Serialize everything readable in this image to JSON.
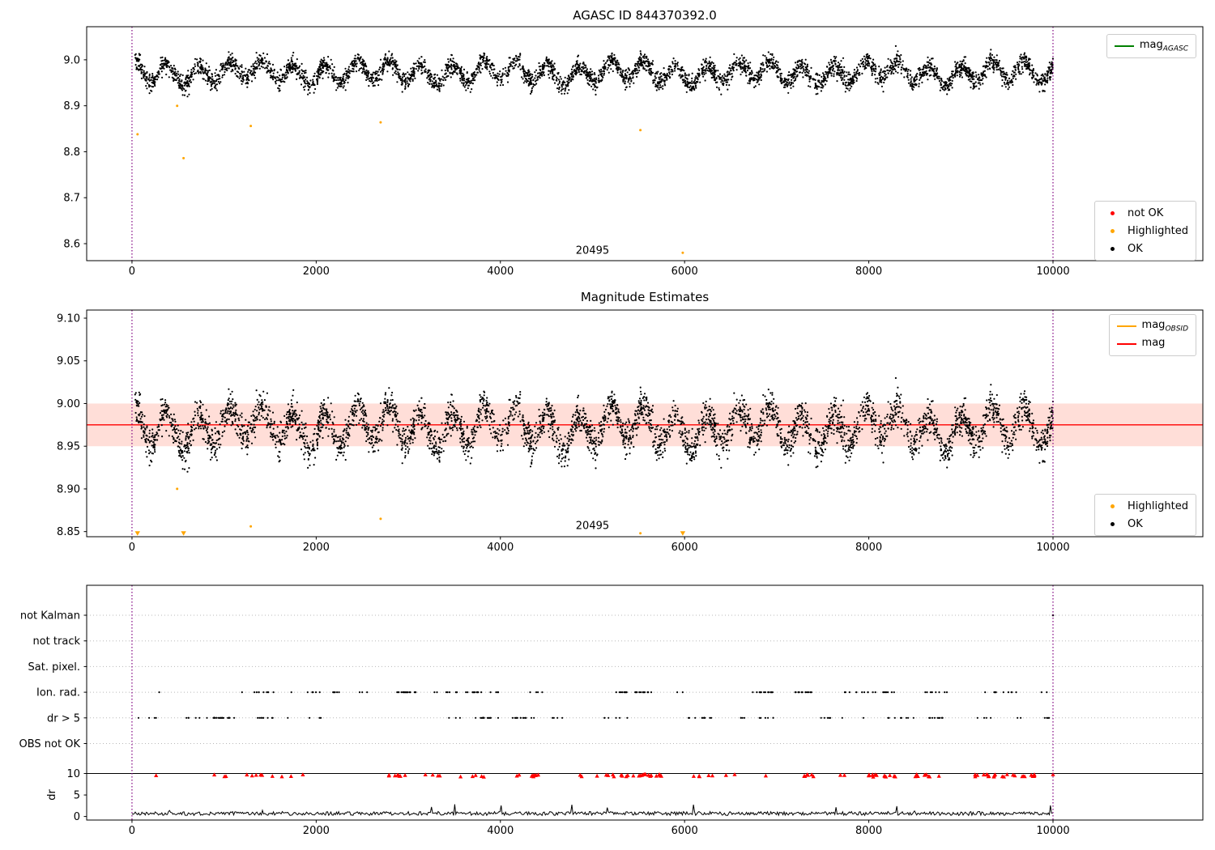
{
  "figure": {
    "background": "#ffffff"
  },
  "chart_data": [
    {
      "id": "plot-agasc",
      "type": "scatter",
      "title": "AGASC ID 844370392.0",
      "xlim": [
        -492,
        11627
      ],
      "ylim": [
        8.563,
        9.072
      ],
      "xticks": [
        0,
        2000,
        4000,
        6000,
        8000,
        10000
      ],
      "xtick_labels": [
        "0",
        "2000",
        "4000",
        "6000",
        "8000",
        "10000"
      ],
      "yticks": [
        8.6,
        8.7,
        8.8,
        8.9,
        9.0
      ],
      "ytick_labels": [
        "8.6",
        "8.7",
        "8.8",
        "8.9",
        "9.0"
      ],
      "vlines": {
        "x": [
          0,
          10000
        ],
        "color": "#800080"
      },
      "annotation": {
        "text": "20495",
        "x": 5000,
        "y": 8.578
      },
      "ok_series": {
        "label": "OK",
        "color": "#000000",
        "n": 4200,
        "x_min": 30,
        "x_max": 10000,
        "mean": 8.972,
        "osc_amplitude": 0.02,
        "osc_period": 345,
        "slow_amplitude": 0.007,
        "slow_period": 1370,
        "noise_sd": 0.01,
        "seed": 42
      },
      "highlighted_points": [
        [
          60,
          8.838
        ],
        [
          490,
          8.9
        ],
        [
          560,
          8.786
        ],
        [
          1290,
          8.856
        ],
        [
          2700,
          8.864
        ],
        [
          5520,
          8.847
        ],
        [
          5980,
          8.58
        ]
      ],
      "not_ok_points": [],
      "legend_line": {
        "label_base": "mag",
        "label_sub": "AGASC",
        "color": "#008000"
      },
      "legend_markers": [
        {
          "label": "not OK",
          "color": "#ff0000"
        },
        {
          "label": "Highlighted",
          "color": "#ffa500"
        },
        {
          "label": "OK",
          "color": "#000000"
        }
      ]
    },
    {
      "id": "plot-magnitude-estimates",
      "type": "scatter",
      "title": "Magnitude Estimates",
      "xlim": [
        -492,
        11627
      ],
      "ylim": [
        8.844,
        9.1095
      ],
      "xticks": [
        0,
        2000,
        4000,
        6000,
        8000,
        10000
      ],
      "xtick_labels": [
        "0",
        "2000",
        "4000",
        "6000",
        "8000",
        "10000"
      ],
      "yticks": [
        8.85,
        8.9,
        8.95,
        9.0,
        9.05,
        9.1
      ],
      "ytick_labels": [
        "8.85",
        "8.90",
        "8.95",
        "9.00",
        "9.05",
        "9.10"
      ],
      "vlines": {
        "x": [
          0,
          10000
        ],
        "color": "#800080"
      },
      "annotation": {
        "text": "20495",
        "x": 5000,
        "y": 8.853
      },
      "mag_line": {
        "y": 8.975,
        "color": "#ff0000"
      },
      "mag_band": {
        "y_low": 8.95,
        "y_high": 9.0,
        "color": "#ff8a73",
        "opacity": 0.28
      },
      "ok_series": {
        "label": "OK",
        "color": "#000000",
        "n": 4200,
        "x_min": 30,
        "x_max": 10000,
        "mean": 8.972,
        "osc_amplitude": 0.02,
        "osc_period": 345,
        "slow_amplitude": 0.007,
        "slow_period": 1370,
        "noise_sd": 0.01,
        "seed": 42
      },
      "highlighted_points": [
        [
          490,
          8.9
        ],
        [
          1290,
          8.856
        ],
        [
          2700,
          8.865
        ],
        [
          5520,
          8.848
        ]
      ],
      "clipped_low_x": [
        60,
        560,
        5980
      ],
      "legend_lines": [
        {
          "label_base": "mag",
          "label_sub": "OBSID",
          "color": "#ffa500"
        },
        {
          "label_base": "mag",
          "label_sub": "",
          "color": "#ff0000"
        }
      ],
      "legend_markers": [
        {
          "label": "Highlighted",
          "color": "#ffa500"
        },
        {
          "label": "OK",
          "color": "#000000"
        }
      ]
    },
    {
      "id": "plot-flags",
      "type": "flags",
      "categories": [
        "not Kalman",
        "not track",
        "Sat. pixel.",
        "Ion. rad.",
        "dr > 5",
        "OBS not OK"
      ],
      "xlim": [
        -492,
        11627
      ],
      "xticks": [
        0,
        2000,
        4000,
        6000,
        8000,
        10000
      ],
      "xtick_labels": [
        "0",
        "2000",
        "4000",
        "6000",
        "8000",
        "10000"
      ],
      "dr_axis": {
        "label": "dr",
        "ticks": [
          0,
          5,
          10
        ],
        "tick_labels": [
          "0",
          "5",
          "10"
        ],
        "line_at": 10
      },
      "vlines": {
        "x": [
          0,
          10000
        ],
        "color": "#800080"
      },
      "flag_rows": [
        {
          "category": "Ion. rad.",
          "clusters": 48,
          "seed": 7
        },
        {
          "category": "dr > 5",
          "clusters": 50,
          "seed": 11
        }
      ],
      "single_points": [
        {
          "category": "not Kalman",
          "x": 10000
        }
      ],
      "dr_exceed_markers": {
        "color": "#ff0000",
        "clusters": 55,
        "seed": 13,
        "extra_x": [
          10000
        ]
      },
      "dr_trace": {
        "color": "#000000",
        "base": 0.7,
        "noise": 0.45,
        "spike_chance": 0.013,
        "seed": 21
      }
    }
  ]
}
